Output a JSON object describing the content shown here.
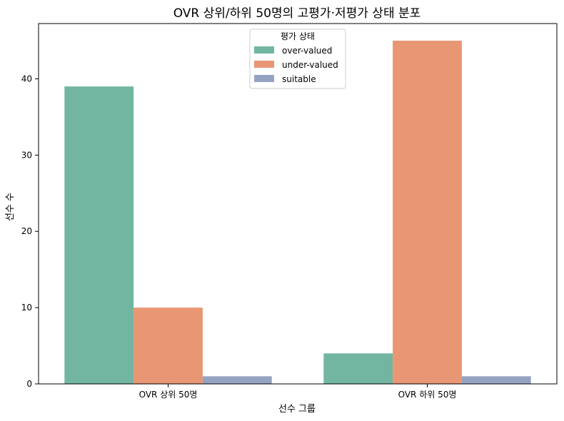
{
  "chart_data": {
    "type": "bar",
    "title": "OVR 상위/하위 50명의 고평가·저평가 상태 분포",
    "xlabel": "선수 그룹",
    "ylabel": "선수 수",
    "categories": [
      "OVR 상위 50명",
      "OVR 하위 50명"
    ],
    "series": [
      {
        "name": "over-valued",
        "color": "#72b6a1",
        "values": [
          39,
          4
        ]
      },
      {
        "name": "under-valued",
        "color": "#e99675",
        "values": [
          10,
          45
        ]
      },
      {
        "name": "suitable",
        "color": "#95a3c3",
        "values": [
          1,
          1
        ]
      }
    ],
    "ylim": [
      0,
      47.25
    ],
    "yticks": [
      0,
      10,
      20,
      30,
      40
    ],
    "grid": false,
    "legend": {
      "title": "평가 상태",
      "placement": "top-center"
    }
  }
}
